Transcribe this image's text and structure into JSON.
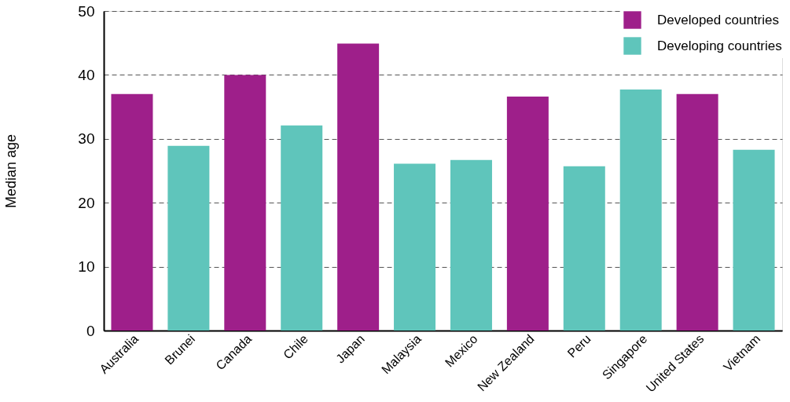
{
  "chart_data": {
    "type": "bar",
    "ylabel": "Median age",
    "categories": [
      "Australia",
      "Brunei",
      "Canada",
      "Chile",
      "Japan",
      "Malaysia",
      "Mexico",
      "New Zealand",
      "Peru",
      "Singapore",
      "United States",
      "Vietnam"
    ],
    "series": [
      {
        "name": "Developed countries",
        "color": "#9e1f8a",
        "values": [
          37.0,
          null,
          40.0,
          null,
          44.9,
          null,
          null,
          36.6,
          null,
          null,
          37.0,
          null
        ]
      },
      {
        "name": "Developing countries",
        "color": "#5fc5bb",
        "values": [
          null,
          28.9,
          null,
          32.1,
          null,
          26.1,
          26.7,
          null,
          25.7,
          37.7,
          null,
          28.3
        ]
      }
    ],
    "ylim": [
      0,
      50
    ],
    "yticks": [
      0,
      10,
      20,
      30,
      40,
      50
    ],
    "grid": "y",
    "legend": "top right"
  }
}
